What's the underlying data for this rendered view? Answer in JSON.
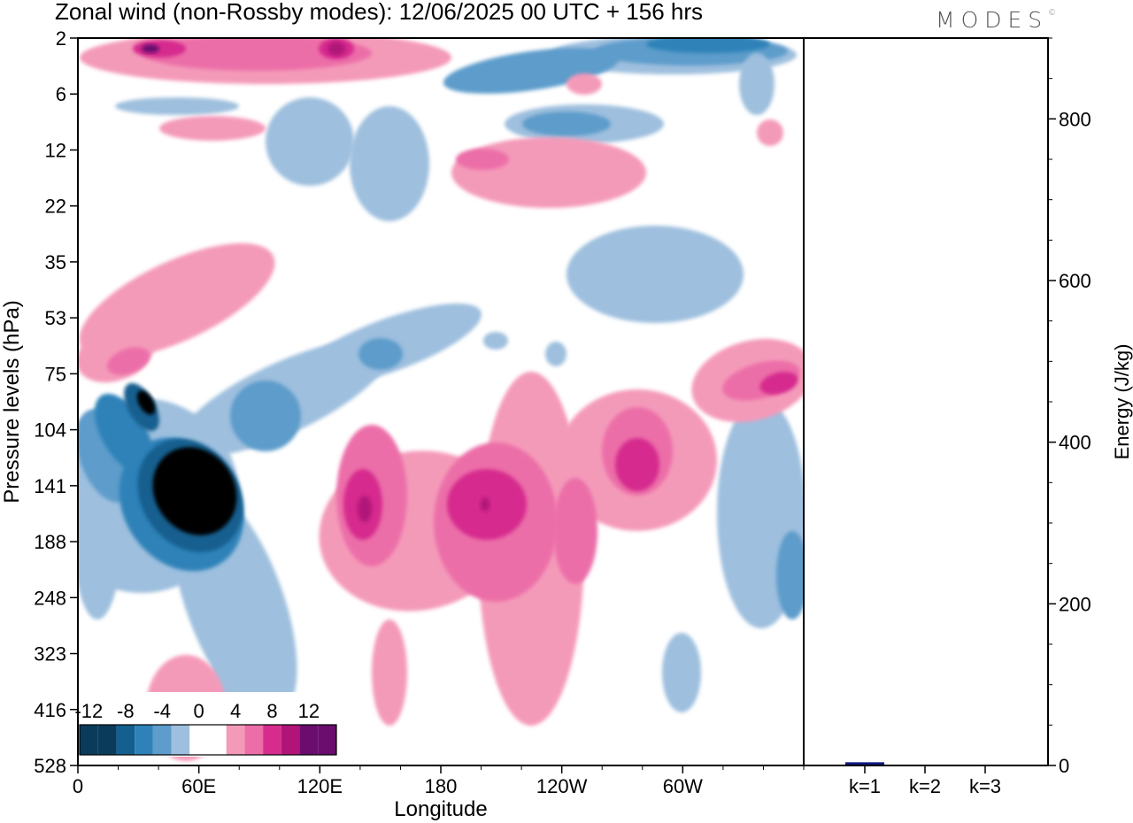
{
  "title": "Zonal wind (non-Rossby modes):  12/06/2025  00 UTC  + 156 hrs",
  "logo": "MODES",
  "logo_mark": "©",
  "colors": {
    "neg": [
      "#0b3b5a",
      "#145f8f",
      "#2e82b8",
      "#5d9ccb",
      "#9ebfde",
      "#d4d6ea"
    ],
    "zero": "#ffffff",
    "pos": [
      "#f9c8c8",
      "#f49ab9",
      "#ec6ea8",
      "#d62c8e",
      "#b11479",
      "#6a0d6e"
    ],
    "bar": "#0e1880"
  },
  "chart_data": [
    {
      "type": "heatmap",
      "title": "Zonal wind (non-Rossby modes):  12/06/2025  00 UTC  + 156 hrs",
      "xlabel": "Longitude",
      "ylabel": "Pressure levels (hPa)",
      "x_ticks": [
        "0",
        "60E",
        "120E",
        "180",
        "120W",
        "60W"
      ],
      "x_tick_degrees": [
        0,
        60,
        120,
        180,
        240,
        300
      ],
      "x_range_degrees": [
        0,
        360
      ],
      "y_ticks": [
        "2",
        "6",
        "12",
        "22",
        "35",
        "53",
        "75",
        "104",
        "141",
        "188",
        "248",
        "323",
        "416",
        "528"
      ],
      "y_ticks_inverted": true,
      "colorbar": {
        "levels": [
          -14,
          -12,
          -10,
          -8,
          -6,
          -4,
          -2,
          0,
          2,
          4,
          6,
          8,
          10,
          12,
          14
        ],
        "labels": [
          "-12",
          "-8",
          "-4",
          "0",
          "4",
          "8",
          "12"
        ],
        "location": "bottom-left"
      },
      "features": [
        {
          "lon": 52,
          "p": 141,
          "value": -14
        },
        {
          "lon": 32,
          "p": 100,
          "value": -12
        },
        {
          "lon": 102,
          "p": 120,
          "value": -6
        },
        {
          "lon": 357,
          "p": 200,
          "value": -6
        },
        {
          "lon": 285,
          "p": 2,
          "value": -12
        },
        {
          "lon": 210,
          "p": 3,
          "value": -6
        },
        {
          "lon": 140,
          "p": 141,
          "value": 10
        },
        {
          "lon": 200,
          "p": 141,
          "value": 10
        },
        {
          "lon": 250,
          "p": 165,
          "value": 6
        },
        {
          "lon": 285,
          "p": 120,
          "value": 8
        },
        {
          "lon": 350,
          "p": 75,
          "value": 8
        },
        {
          "lon": 30,
          "p": 75,
          "value": 4
        },
        {
          "lon": 125,
          "p": 2,
          "value": 10
        },
        {
          "lon": 35,
          "p": 2,
          "value": 8
        },
        {
          "lon": 195,
          "p": 12,
          "value": 4
        }
      ],
      "grid": false,
      "legend": "bottom-left"
    },
    {
      "type": "bar",
      "categories": [
        "k=1",
        "k=2",
        "k=3"
      ],
      "values": [
        4,
        1,
        0.5
      ],
      "ylabel": "Energy (J/kg)",
      "ylim": [
        0,
        900
      ],
      "y_ticks": [
        0,
        200,
        400,
        600,
        800
      ],
      "grid": false
    }
  ]
}
